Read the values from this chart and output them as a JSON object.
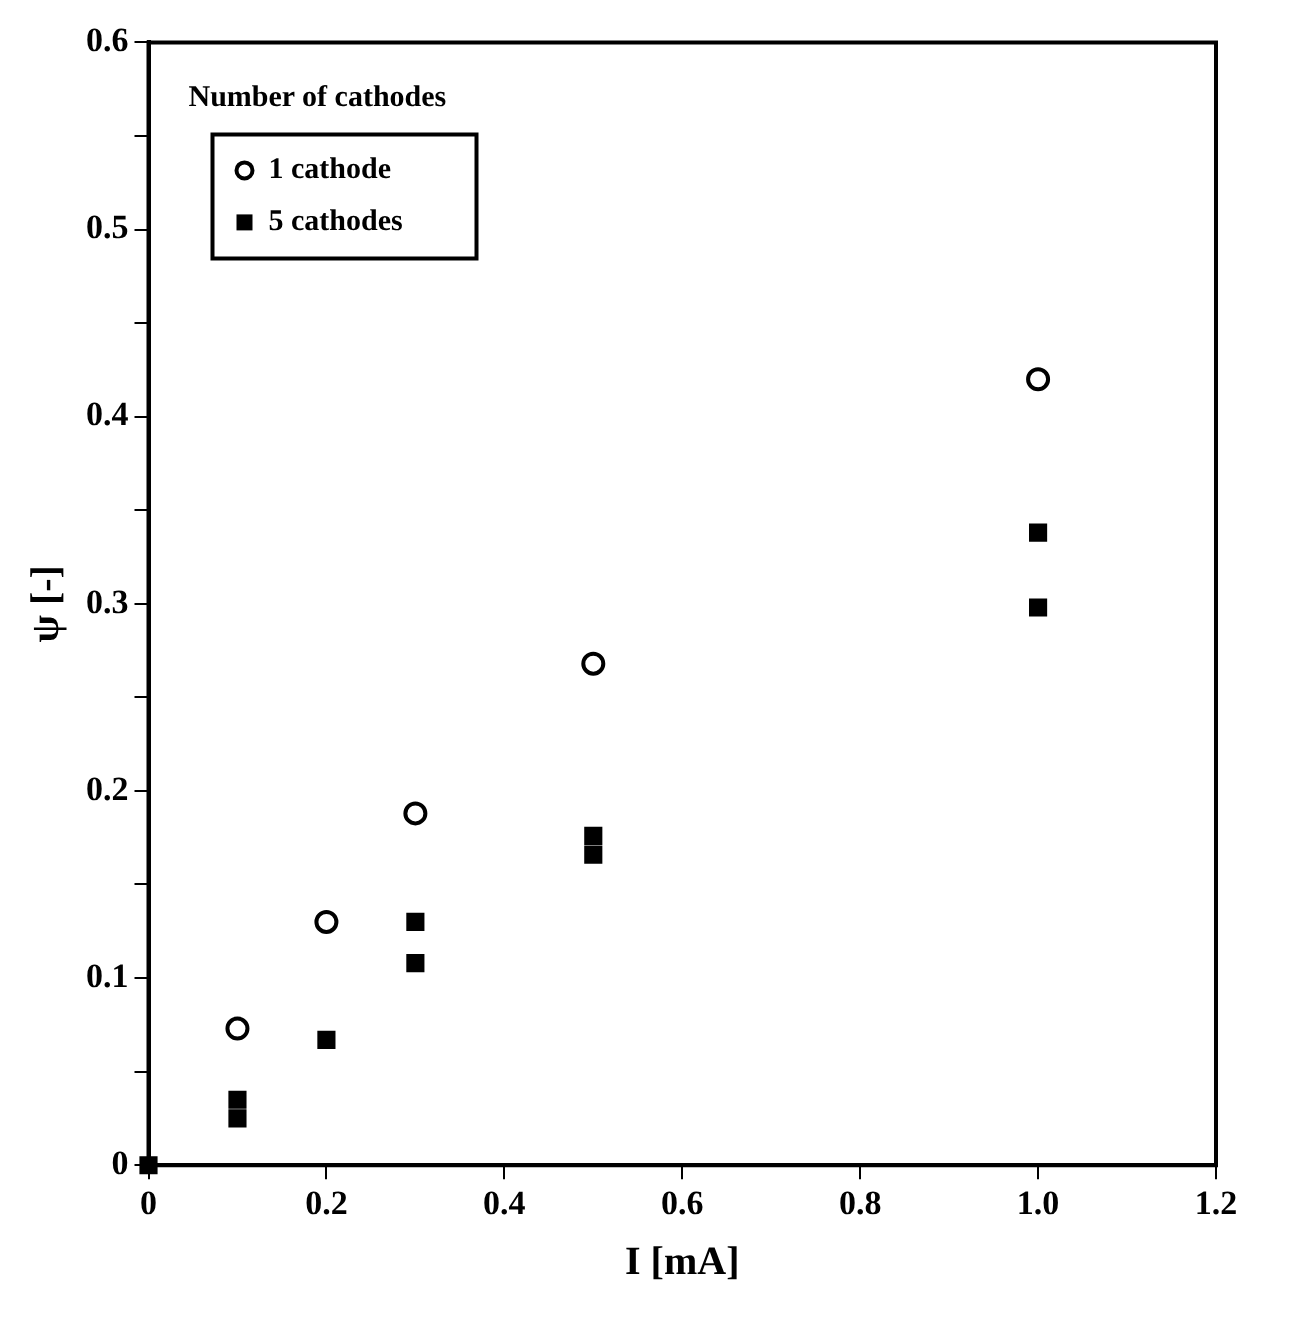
{
  "chart_data": {
    "type": "scatter",
    "xlabel": "I [mA]",
    "ylabel": "ψ [-]",
    "legend_title": "Number of cathodes",
    "legend": "top left",
    "grid": false,
    "xlim": [
      0,
      1.2
    ],
    "xticks": [
      0,
      0.2,
      0.4,
      0.6,
      0.8,
      {
        "value": 1,
        "label": "1.0"
      },
      1.2
    ],
    "ylim": [
      0,
      0.6
    ],
    "yticks": [
      0,
      {
        "value": 0.05,
        "label": null
      },
      0.1,
      {
        "value": 0.15,
        "label": null
      },
      0.2,
      {
        "value": 0.25,
        "label": null
      },
      0.3,
      {
        "value": 0.35,
        "label": null
      },
      0.4,
      {
        "value": 0.45,
        "label": null
      },
      0.5,
      {
        "value": 0.55,
        "label": null
      },
      0.6
    ],
    "series": [
      {
        "name": "1 cathode",
        "color": "#000000",
        "marker": "circle",
        "x": [
          0.1,
          0.2,
          0.3,
          0.5,
          1.0
        ],
        "values": [
          0.073,
          0.13,
          0.188,
          0.268,
          0.42
        ]
      },
      {
        "name": "5 cathodes",
        "color": "#000000",
        "marker": "square",
        "x": [
          0,
          0.1,
          0.1,
          0.2,
          0.3,
          0.3,
          0.5,
          0.5,
          1.0,
          1.0
        ],
        "values": [
          0,
          0.025,
          0.035,
          0.067,
          0.108,
          0.13,
          0.166,
          0.176,
          0.298,
          0.338
        ]
      }
    ]
  }
}
